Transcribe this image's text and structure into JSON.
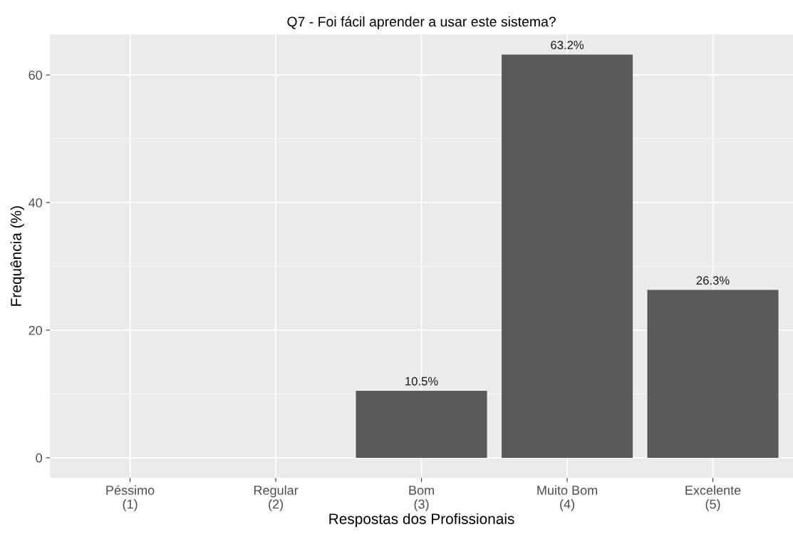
{
  "chart_data": {
    "type": "bar",
    "title": "Q7 - Foi fácil aprender a usar este sistema?",
    "xlabel": "Respostas dos Profissionais",
    "ylabel": "Frequência (%)",
    "categories": [
      "Péssimo\n(1)",
      "Regular\n(2)",
      "Bom\n(3)",
      "Muito Bom\n(4)",
      "Excelente\n(5)"
    ],
    "values": [
      0,
      0,
      10.5,
      63.2,
      26.3
    ],
    "value_labels": [
      null,
      null,
      "10.5%",
      "63.2%",
      "26.3%"
    ],
    "color": "#595959",
    "ylim": [
      -3.16,
      66.36
    ],
    "yticks": [
      0,
      20,
      40,
      60
    ],
    "grid": true
  }
}
